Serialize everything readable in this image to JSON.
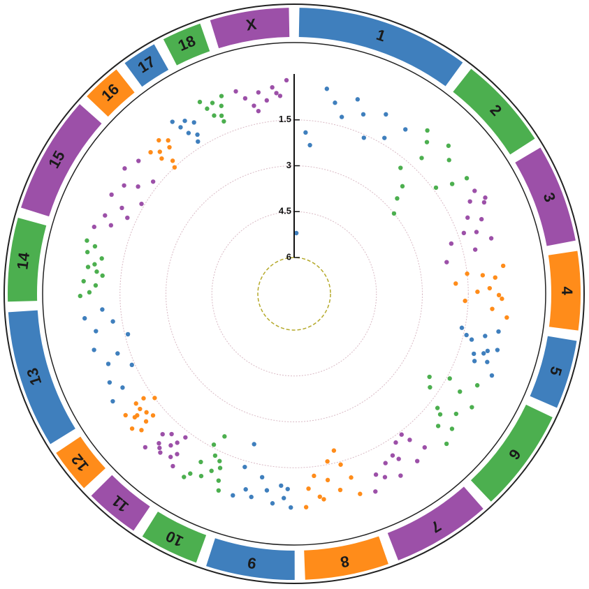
{
  "chart_data": {
    "type": "circular-manhattan",
    "rlim": [
      0,
      6
    ],
    "rticks": [
      1.5,
      3,
      4.5,
      6
    ],
    "series": [
      {
        "name": "1",
        "color": "#3f7fbd",
        "size": 35,
        "x": [
          1,
          3,
          5,
          8,
          11,
          14,
          17,
          20,
          23,
          26,
          29,
          33
        ],
        "values": [
          5.2,
          1.9,
          2.3,
          0.4,
          0.8,
          1.2,
          0.5,
          0.9,
          1.6,
          0.6,
          1.3,
          0.7
        ]
      },
      {
        "name": "2",
        "color": "#4caf4f",
        "size": 19,
        "x": [
          1,
          3,
          5,
          7,
          9,
          11,
          13,
          15,
          17,
          18,
          2,
          8
        ],
        "values": [
          0.3,
          0.6,
          1.1,
          2.2,
          2.6,
          0.5,
          3.0,
          1.4,
          0.9,
          0.4,
          1.8,
          0.2
        ]
      },
      {
        "name": "3",
        "color": "#9c50a8",
        "size": 20,
        "x": [
          1,
          3,
          5,
          7,
          9,
          11,
          13,
          15,
          17,
          19,
          4,
          12
        ],
        "values": [
          0.4,
          0.7,
          0.3,
          1.0,
          0.6,
          1.3,
          1.8,
          0.5,
          1.1,
          2.1,
          0.2,
          0.9
        ]
      },
      {
        "name": "4",
        "color": "#ff8c1a",
        "size": 16,
        "x": [
          1,
          2,
          4,
          5,
          7,
          8,
          10,
          11,
          13,
          15,
          3,
          9
        ],
        "values": [
          0.3,
          1.5,
          0.6,
          1.9,
          0.8,
          1.2,
          0.4,
          1.6,
          0.7,
          0.2,
          1.0,
          0.5
        ]
      },
      {
        "name": "5",
        "color": "#3f7fbd",
        "size": 14,
        "x": [
          1,
          2,
          3,
          5,
          6,
          7,
          9,
          10,
          11,
          13,
          4,
          8
        ],
        "values": [
          0.4,
          1.6,
          0.8,
          1.2,
          0.3,
          0.6,
          1.0,
          0.5,
          0.9,
          0.2,
          1.4,
          0.7
        ]
      },
      {
        "name": "6",
        "color": "#4caf4f",
        "size": 21,
        "x": [
          1,
          3,
          5,
          7,
          9,
          11,
          13,
          15,
          17,
          19,
          6,
          14
        ],
        "values": [
          0.5,
          1.4,
          0.9,
          0.3,
          1.8,
          0.6,
          1.2,
          0.4,
          0.8,
          0.2,
          2.0,
          1.0
        ]
      },
      {
        "name": "7",
        "color": "#9c50a8",
        "size": 20,
        "x": [
          1,
          3,
          5,
          7,
          9,
          11,
          13,
          15,
          17,
          19,
          4,
          10
        ],
        "values": [
          0.6,
          1.1,
          0.4,
          1.3,
          0.8,
          0.3,
          0.9,
          0.5,
          0.7,
          0.2,
          1.4,
          1.0
        ]
      },
      {
        "name": "8",
        "color": "#ff8c1a",
        "size": 17,
        "x": [
          1,
          2,
          4,
          6,
          8,
          9,
          11,
          13,
          15,
          16,
          5,
          12
        ],
        "values": [
          0.3,
          0.9,
          1.4,
          0.6,
          1.6,
          1.0,
          0.4,
          1.2,
          0.8,
          0.2,
          1.9,
          0.5
        ]
      },
      {
        "name": "9",
        "color": "#3f7fbd",
        "size": 18,
        "x": [
          1,
          3,
          4,
          6,
          8,
          10,
          12,
          14,
          16,
          17,
          2,
          15
        ],
        "values": [
          0.2,
          0.5,
          0.9,
          0.3,
          0.7,
          1.1,
          0.4,
          0.6,
          1.3,
          0.3,
          0.8,
          2.1
        ]
      },
      {
        "name": "10",
        "color": "#4caf4f",
        "size": 12,
        "x": [
          1,
          2,
          3,
          5,
          6,
          7,
          8,
          9,
          10,
          11,
          4,
          6
        ],
        "values": [
          0.3,
          0.6,
          1.0,
          0.8,
          1.3,
          0.5,
          1.6,
          0.9,
          0.4,
          0.2,
          1.2,
          2.0
        ]
      },
      {
        "name": "11",
        "color": "#9c50a8",
        "size": 11,
        "x": [
          1,
          2,
          3,
          4,
          5,
          6,
          7,
          8,
          9,
          10,
          3,
          7
        ],
        "values": [
          0.3,
          0.7,
          0.5,
          1.0,
          0.8,
          0.4,
          1.1,
          0.6,
          0.9,
          0.2,
          1.3,
          0.5
        ]
      },
      {
        "name": "12",
        "color": "#ff8c1a",
        "size": 9,
        "x": [
          1,
          2,
          3,
          4,
          5,
          6,
          7,
          8,
          2,
          5,
          6,
          8
        ],
        "values": [
          0.5,
          0.8,
          0.3,
          1.0,
          0.6,
          0.9,
          0.4,
          1.2,
          1.1,
          0.7,
          1.5,
          0.9
        ]
      },
      {
        "name": "13",
        "color": "#3f7fbd",
        "size": 28,
        "x": [
          1,
          3,
          6,
          8,
          11,
          13,
          16,
          18,
          21,
          23,
          25,
          27
        ],
        "values": [
          0.3,
          0.8,
          0.5,
          1.4,
          0.7,
          1.1,
          0.4,
          1.6,
          0.6,
          1.2,
          0.3,
          0.9
        ]
      },
      {
        "name": "14",
        "color": "#4caf4f",
        "size": 17,
        "x": [
          1,
          2,
          4,
          5,
          7,
          9,
          10,
          12,
          13,
          15,
          16,
          8
        ],
        "values": [
          0.2,
          0.5,
          0.7,
          0.3,
          0.9,
          0.4,
          0.6,
          0.8,
          0.3,
          0.5,
          0.2,
          0.7
        ]
      },
      {
        "name": "15",
        "color": "#9c50a8",
        "size": 24,
        "x": [
          1,
          3,
          5,
          7,
          9,
          11,
          13,
          15,
          17,
          19,
          21,
          23
        ],
        "values": [
          0.3,
          0.8,
          0.5,
          1.2,
          0.9,
          0.4,
          1.4,
          0.6,
          1.0,
          0.3,
          1.3,
          0.5
        ]
      },
      {
        "name": "16",
        "color": "#ff8c1a",
        "size": 8,
        "x": [
          1,
          2,
          3,
          4,
          5,
          6,
          7,
          3
        ],
        "values": [
          0.6,
          1.0,
          0.8,
          1.3,
          0.5,
          0.9,
          0.7,
          1.5
        ]
      },
      {
        "name": "17",
        "color": "#3f7fbd",
        "size": 7,
        "x": [
          1,
          2,
          3,
          4,
          5,
          6,
          4
        ],
        "values": [
          0.3,
          0.6,
          0.9,
          0.5,
          1.1,
          0.7,
          1.3
        ]
      },
      {
        "name": "18",
        "color": "#4caf4f",
        "size": 8,
        "x": [
          1,
          2,
          3,
          4,
          5,
          6,
          7,
          5
        ],
        "values": [
          0.2,
          0.5,
          0.8,
          0.4,
          0.9,
          0.6,
          0.3,
          1.1
        ]
      },
      {
        "name": "X",
        "color": "#9c50a8",
        "size": 16,
        "x": [
          1,
          3,
          5,
          7,
          9,
          11,
          13,
          15,
          6,
          12
        ],
        "values": [
          0.3,
          0.6,
          0.9,
          0.5,
          0.8,
          0.4,
          0.7,
          0.2,
          1.1,
          0.6
        ]
      }
    ]
  }
}
